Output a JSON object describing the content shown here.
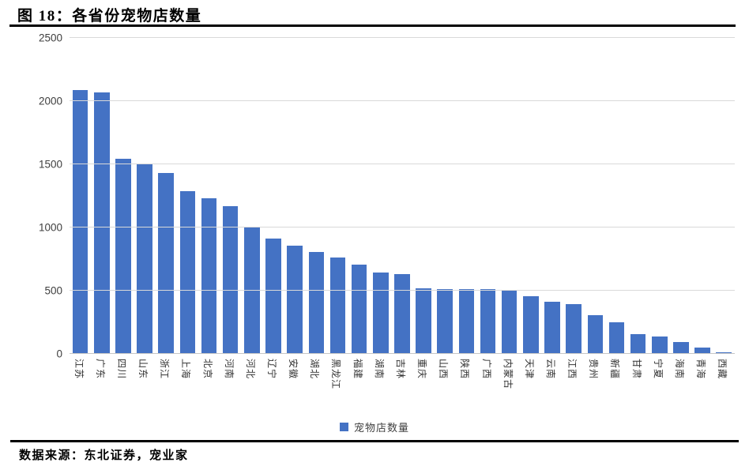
{
  "header": {
    "title": "图 18：各省份宠物店数量"
  },
  "footer": {
    "source": "数据来源：东北证券，宠业家"
  },
  "chart_data": {
    "type": "bar",
    "title": "各省份宠物店数量",
    "categories": [
      "江苏",
      "广东",
      "四川",
      "山东",
      "浙江",
      "上海",
      "北京",
      "河南",
      "河北",
      "辽宁",
      "安徽",
      "湖北",
      "黑龙江",
      "福建",
      "湖南",
      "吉林",
      "重庆",
      "山西",
      "陕西",
      "广西",
      "内蒙古",
      "天津",
      "云南",
      "江西",
      "贵州",
      "新疆",
      "甘肃",
      "宁夏",
      "海南",
      "青海",
      "西藏"
    ],
    "values": [
      2090,
      2070,
      1545,
      1500,
      1430,
      1290,
      1230,
      1170,
      1000,
      915,
      855,
      805,
      760,
      705,
      645,
      630,
      520,
      515,
      515,
      510,
      505,
      455,
      410,
      395,
      305,
      250,
      155,
      135,
      95,
      50,
      15
    ],
    "ylim": [
      0,
      2500
    ],
    "yticks": [
      0,
      500,
      1000,
      1500,
      2000,
      2500
    ],
    "xlabel": "",
    "ylabel": "",
    "x_label_rotation_deg": 90,
    "grid": "horizontal-only",
    "legend": [
      "宠物店数量"
    ],
    "legend_position": "bottom",
    "bar_color": "#4472C4"
  }
}
